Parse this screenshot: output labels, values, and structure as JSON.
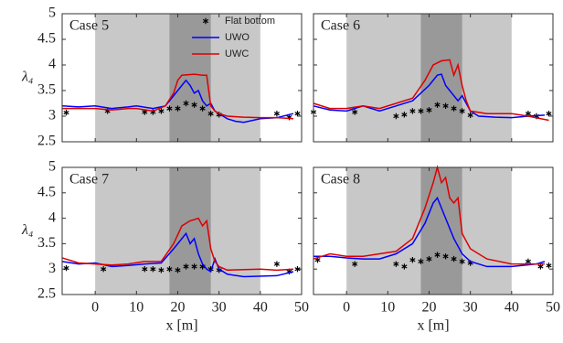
{
  "chart_data": [
    {
      "type": "line",
      "title": "Case 5",
      "ylabel": "λ₄",
      "xlim": [
        -8,
        50
      ],
      "ylim": [
        2.5,
        5
      ],
      "xticks": [
        0,
        10,
        20,
        30,
        40,
        50
      ],
      "yticks": [
        2.5,
        3,
        3.5,
        4,
        4.5,
        5
      ],
      "show_xtick_labels": false,
      "show_ytick_labels": true,
      "legend": "upper right",
      "shaded_regions": [
        {
          "x": [
            0,
            40
          ],
          "color": "#c8c8c8"
        },
        {
          "x": [
            18,
            28
          ],
          "color": "#999999"
        }
      ],
      "series": [
        {
          "name": "Flat bottom",
          "kind": "scatter",
          "color": "#000000",
          "x": [
            -7,
            3,
            12,
            14,
            16,
            18,
            20,
            22,
            24,
            26,
            28,
            30,
            44,
            47,
            49
          ],
          "values": [
            3.07,
            3.1,
            3.08,
            3.08,
            3.1,
            3.15,
            3.15,
            3.25,
            3.22,
            3.15,
            3.05,
            3.03,
            3.05,
            2.98,
            3.05
          ]
        },
        {
          "name": "UWO",
          "kind": "line",
          "color": "#0000ff",
          "x": [
            -8,
            -4,
            0,
            4,
            8,
            10,
            14,
            17,
            19,
            21,
            22,
            23,
            24,
            25,
            26,
            27,
            28,
            29,
            30,
            32,
            34,
            36,
            40,
            44,
            48
          ],
          "values": [
            3.2,
            3.18,
            3.2,
            3.15,
            3.18,
            3.2,
            3.15,
            3.2,
            3.4,
            3.6,
            3.7,
            3.6,
            3.45,
            3.5,
            3.3,
            3.2,
            3.25,
            3.1,
            3.05,
            2.95,
            2.9,
            2.88,
            2.95,
            2.97,
            3.05
          ]
        },
        {
          "name": "UWC",
          "kind": "line",
          "color": "#dd0000",
          "x": [
            -8,
            -4,
            0,
            4,
            8,
            10,
            14,
            17,
            19,
            20,
            21,
            24,
            26,
            27,
            28,
            29,
            30,
            32,
            36,
            40,
            44,
            48
          ],
          "values": [
            3.15,
            3.15,
            3.15,
            3.12,
            3.15,
            3.15,
            3.1,
            3.2,
            3.45,
            3.7,
            3.8,
            3.82,
            3.8,
            3.8,
            3.2,
            3.1,
            3.05,
            3.0,
            2.98,
            2.97,
            2.97,
            2.95
          ]
        }
      ]
    },
    {
      "type": "line",
      "title": "Case 6",
      "xlim": [
        -8,
        50
      ],
      "ylim": [
        2.5,
        5
      ],
      "xticks": [
        0,
        10,
        20,
        30,
        40,
        50
      ],
      "yticks": [
        2.5,
        3,
        3.5,
        4,
        4.5,
        5
      ],
      "show_xtick_labels": false,
      "show_ytick_labels": false,
      "shaded_regions": [
        {
          "x": [
            0,
            40
          ],
          "color": "#c8c8c8"
        },
        {
          "x": [
            18,
            28
          ],
          "color": "#999999"
        }
      ],
      "series": [
        {
          "name": "Flat bottom",
          "kind": "scatter",
          "color": "#000000",
          "x": [
            -8,
            2,
            12,
            14,
            16,
            18,
            20,
            22,
            24,
            26,
            28,
            30,
            44,
            46,
            49
          ],
          "values": [
            3.08,
            3.08,
            3.0,
            3.03,
            3.1,
            3.1,
            3.12,
            3.22,
            3.2,
            3.15,
            3.1,
            3.02,
            3.05,
            3.0,
            3.05
          ]
        },
        {
          "name": "UWO",
          "kind": "line",
          "color": "#0000ff",
          "x": [
            -8,
            -4,
            0,
            4,
            8,
            12,
            16,
            20,
            22,
            23,
            24,
            25,
            27,
            28,
            30,
            32,
            36,
            40,
            44,
            48
          ],
          "values": [
            3.2,
            3.12,
            3.1,
            3.2,
            3.1,
            3.2,
            3.3,
            3.6,
            3.8,
            3.82,
            3.6,
            3.5,
            3.3,
            3.4,
            3.1,
            3.0,
            2.98,
            2.97,
            3.0,
            3.02
          ]
        },
        {
          "name": "UWC",
          "kind": "line",
          "color": "#dd0000",
          "x": [
            -8,
            -4,
            0,
            4,
            8,
            12,
            16,
            19,
            21,
            23,
            25,
            26,
            27,
            28,
            29,
            30,
            34,
            40,
            44,
            49
          ],
          "values": [
            3.25,
            3.15,
            3.15,
            3.2,
            3.15,
            3.25,
            3.35,
            3.7,
            4.0,
            4.08,
            4.1,
            3.8,
            4.0,
            3.6,
            3.3,
            3.1,
            3.05,
            3.05,
            3.0,
            2.92
          ]
        }
      ]
    },
    {
      "type": "line",
      "title": "Case 7",
      "ylabel": "λ₄",
      "xlabel": "x [m]",
      "xlim": [
        -8,
        50
      ],
      "ylim": [
        2.5,
        5
      ],
      "xticks": [
        0,
        10,
        20,
        30,
        40,
        50
      ],
      "yticks": [
        2.5,
        3,
        3.5,
        4,
        4.5,
        5
      ],
      "show_xtick_labels": true,
      "show_ytick_labels": true,
      "shaded_regions": [
        {
          "x": [
            0,
            40
          ],
          "color": "#c8c8c8"
        },
        {
          "x": [
            18,
            28
          ],
          "color": "#999999"
        }
      ],
      "series": [
        {
          "name": "Flat bottom",
          "kind": "scatter",
          "color": "#000000",
          "x": [
            -7,
            2,
            12,
            14,
            16,
            18,
            20,
            22,
            24,
            26,
            28,
            30,
            44,
            47,
            49
          ],
          "values": [
            3.02,
            3.0,
            3.0,
            3.0,
            2.98,
            3.0,
            2.98,
            3.05,
            3.05,
            3.05,
            3.0,
            2.98,
            3.1,
            2.95,
            3.0
          ]
        },
        {
          "name": "UWO",
          "kind": "line",
          "color": "#0000ff",
          "x": [
            -8,
            -4,
            0,
            4,
            8,
            12,
            16,
            19,
            21,
            22,
            23,
            24,
            25,
            26,
            27,
            28,
            29,
            30,
            32,
            36,
            44,
            48
          ],
          "values": [
            3.15,
            3.1,
            3.12,
            3.05,
            3.07,
            3.1,
            3.12,
            3.4,
            3.6,
            3.7,
            3.5,
            3.6,
            3.3,
            3.1,
            3.0,
            2.95,
            3.2,
            3.0,
            2.9,
            2.85,
            2.87,
            2.95
          ]
        },
        {
          "name": "UWC",
          "kind": "line",
          "color": "#dd0000",
          "x": [
            -8,
            -4,
            0,
            4,
            8,
            12,
            16,
            19,
            21,
            23,
            25,
            26,
            27,
            28,
            29,
            30,
            32,
            40,
            44,
            48
          ],
          "values": [
            3.22,
            3.12,
            3.1,
            3.08,
            3.1,
            3.15,
            3.15,
            3.5,
            3.85,
            3.95,
            4.0,
            3.85,
            3.95,
            3.4,
            3.15,
            3.05,
            2.98,
            3.0,
            2.98,
            3.0
          ]
        }
      ]
    },
    {
      "type": "line",
      "title": "Case 8",
      "xlabel": "x [m]",
      "xlim": [
        -8,
        50
      ],
      "ylim": [
        2.5,
        5
      ],
      "xticks": [
        0,
        10,
        20,
        30,
        40,
        50
      ],
      "yticks": [
        2.5,
        3,
        3.5,
        4,
        4.5,
        5
      ],
      "show_xtick_labels": true,
      "show_ytick_labels": false,
      "shaded_regions": [
        {
          "x": [
            0,
            40
          ],
          "color": "#c8c8c8"
        },
        {
          "x": [
            18,
            28
          ],
          "color": "#999999"
        }
      ],
      "series": [
        {
          "name": "Flat bottom",
          "kind": "scatter",
          "color": "#000000",
          "x": [
            -7,
            2,
            12,
            14,
            16,
            18,
            20,
            22,
            24,
            26,
            28,
            30,
            44,
            47,
            49
          ],
          "values": [
            3.18,
            3.1,
            3.1,
            3.05,
            3.18,
            3.15,
            3.2,
            3.28,
            3.25,
            3.2,
            3.15,
            3.12,
            3.15,
            3.05,
            3.07
          ]
        },
        {
          "name": "UWO",
          "kind": "line",
          "color": "#0000ff",
          "x": [
            -8,
            -4,
            0,
            4,
            8,
            12,
            16,
            19,
            21,
            22,
            24,
            26,
            28,
            30,
            34,
            40,
            46,
            48
          ],
          "values": [
            3.25,
            3.25,
            3.22,
            3.2,
            3.2,
            3.3,
            3.5,
            3.9,
            4.3,
            4.4,
            4.0,
            3.6,
            3.3,
            3.15,
            3.05,
            3.05,
            3.1,
            3.15
          ]
        },
        {
          "name": "UWC",
          "kind": "line",
          "color": "#dd0000",
          "x": [
            -8,
            -4,
            0,
            4,
            8,
            12,
            16,
            19,
            21,
            22,
            23,
            24,
            25,
            26,
            27,
            28,
            30,
            34,
            40,
            48
          ],
          "values": [
            3.2,
            3.3,
            3.25,
            3.25,
            3.3,
            3.35,
            3.6,
            4.2,
            4.7,
            5.0,
            4.7,
            4.8,
            4.4,
            4.3,
            4.4,
            3.7,
            3.4,
            3.2,
            3.1,
            3.1
          ]
        }
      ]
    }
  ]
}
